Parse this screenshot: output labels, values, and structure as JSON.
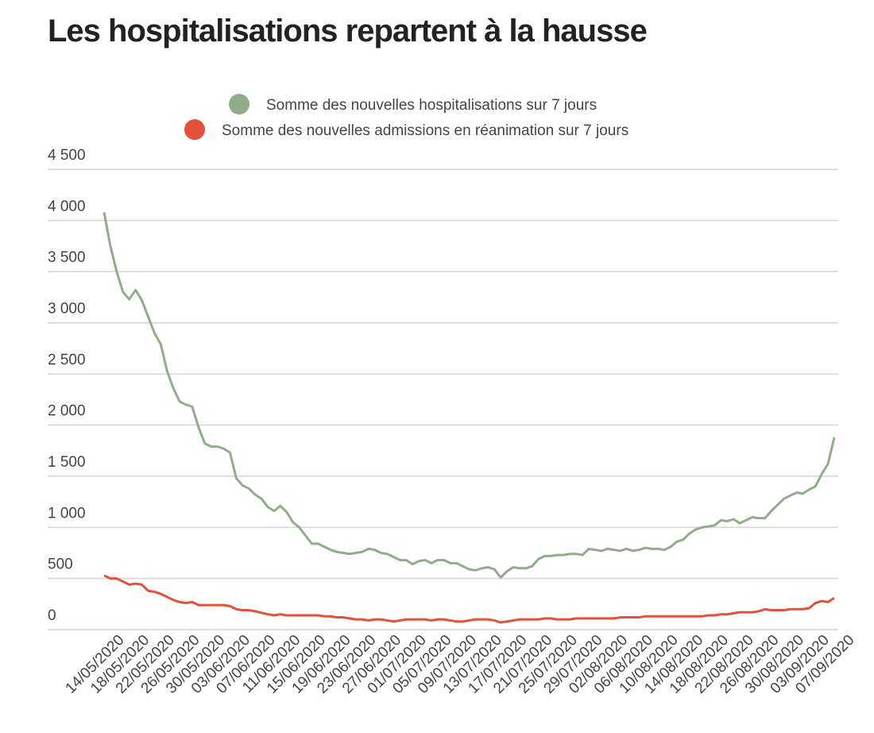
{
  "chart_data": {
    "type": "line",
    "title": "Les hospitalisations repartent à la hausse",
    "categories": [
      "14/05/2020",
      null,
      null,
      null,
      "18/05/2020",
      null,
      null,
      null,
      "22/05/2020",
      null,
      null,
      null,
      "26/05/2020",
      null,
      null,
      null,
      "30/05/2020",
      null,
      null,
      null,
      "03/06/2020",
      null,
      null,
      null,
      "07/06/2020",
      null,
      null,
      null,
      "11/06/2020",
      null,
      null,
      null,
      "15/06/2020",
      null,
      null,
      null,
      "19/06/2020",
      null,
      null,
      null,
      "23/06/2020",
      null,
      null,
      null,
      "27/06/2020",
      null,
      null,
      null,
      "01/07/2020",
      null,
      null,
      null,
      "05/07/2020",
      null,
      null,
      null,
      "09/07/2020",
      null,
      null,
      null,
      "13/07/2020",
      null,
      null,
      null,
      "17/07/2020",
      null,
      null,
      null,
      "21/07/2020",
      null,
      null,
      null,
      "25/07/2020",
      null,
      null,
      null,
      "29/07/2020",
      null,
      null,
      null,
      "02/08/2020",
      null,
      null,
      null,
      "06/08/2020",
      null,
      null,
      null,
      "10/08/2020",
      null,
      null,
      null,
      "14/08/2020",
      null,
      null,
      null,
      "18/08/2020",
      null,
      null,
      null,
      "22/08/2020",
      null,
      null,
      null,
      "26/08/2020",
      null,
      null,
      null,
      "30/08/2020",
      null,
      null,
      null,
      "03/09/2020",
      null,
      null,
      null,
      "07/09/2020"
    ],
    "series": [
      {
        "name": "Somme des nouvelles hospitalisations sur 7 jours",
        "color": "#8fad88",
        "values": [
          4080,
          3750,
          3500,
          3300,
          3230,
          3320,
          3220,
          3060,
          2900,
          2790,
          2530,
          2360,
          2230,
          2200,
          2180,
          1980,
          1820,
          1790,
          1790,
          1770,
          1730,
          1480,
          1410,
          1380,
          1320,
          1280,
          1200,
          1160,
          1210,
          1150,
          1050,
          1000,
          920,
          840,
          840,
          810,
          780,
          760,
          750,
          740,
          750,
          760,
          790,
          780,
          750,
          740,
          710,
          680,
          680,
          640,
          670,
          680,
          650,
          680,
          680,
          650,
          650,
          620,
          590,
          580,
          600,
          610,
          590,
          510,
          570,
          610,
          600,
          600,
          620,
          690,
          720,
          720,
          730,
          730,
          740,
          740,
          730,
          790,
          780,
          770,
          790,
          780,
          770,
          790,
          770,
          780,
          800,
          790,
          790,
          780,
          810,
          860,
          880,
          940,
          980,
          1000,
          1010,
          1020,
          1070,
          1060,
          1080,
          1040,
          1070,
          1100,
          1090,
          1090,
          1160,
          1220,
          1280,
          1310,
          1340,
          1330,
          1370,
          1400,
          1520,
          1620,
          1880
        ]
      },
      {
        "name": "Somme des nouvelles admissions en réanimation sur 7 jours",
        "color": "#e4513a",
        "values": [
          530,
          500,
          500,
          470,
          440,
          450,
          440,
          380,
          370,
          350,
          320,
          290,
          270,
          260,
          270,
          240,
          240,
          240,
          240,
          240,
          230,
          200,
          190,
          190,
          180,
          165,
          150,
          140,
          150,
          140,
          140,
          140,
          140,
          140,
          140,
          130,
          130,
          120,
          120,
          110,
          100,
          100,
          90,
          100,
          100,
          90,
          80,
          90,
          100,
          100,
          100,
          100,
          90,
          100,
          100,
          90,
          80,
          80,
          90,
          100,
          100,
          100,
          90,
          70,
          80,
          90,
          100,
          100,
          100,
          100,
          110,
          110,
          100,
          100,
          100,
          110,
          110,
          110,
          110,
          110,
          110,
          110,
          120,
          120,
          120,
          120,
          130,
          130,
          130,
          130,
          130,
          130,
          130,
          130,
          130,
          130,
          140,
          140,
          150,
          150,
          160,
          170,
          170,
          170,
          180,
          200,
          190,
          190,
          190,
          200,
          200,
          200,
          210,
          260,
          280,
          270,
          310
        ]
      }
    ],
    "ylim": [
      0,
      4500
    ],
    "yticks": [
      0,
      500,
      {
        "value": 1000,
        "label": "1 000"
      },
      {
        "value": 1500,
        "label": "1 500"
      },
      {
        "value": 2000,
        "label": "2 000"
      },
      {
        "value": 2500,
        "label": "2 500"
      },
      {
        "value": 3000,
        "label": "3 000"
      },
      {
        "value": 3500,
        "label": "3 500"
      },
      {
        "value": 4000,
        "label": "4 000"
      },
      {
        "value": 4500,
        "label": "4 500"
      }
    ],
    "grid": true
  }
}
